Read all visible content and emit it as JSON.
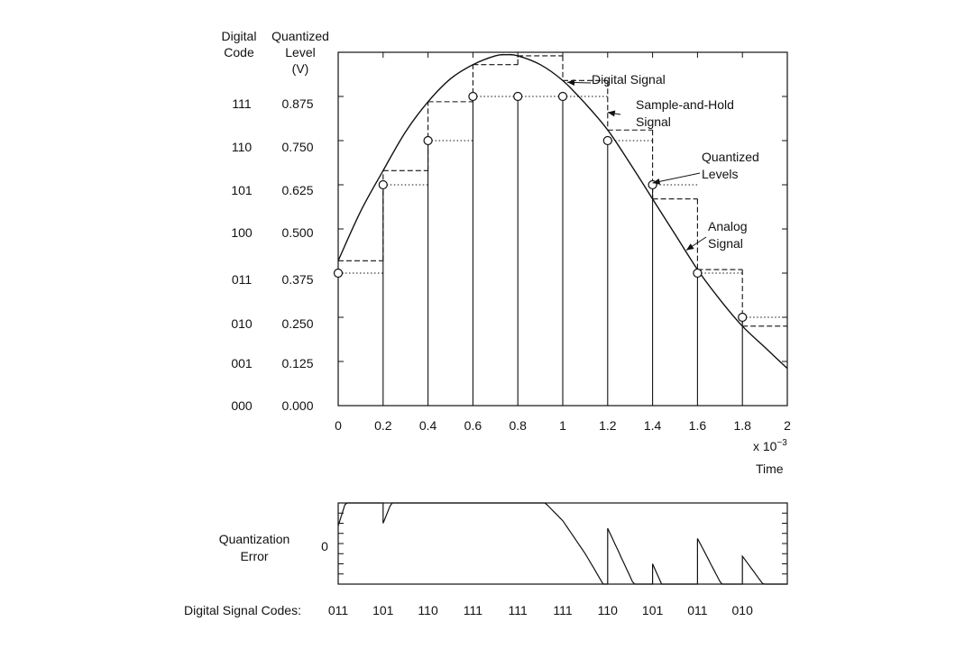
{
  "headers": {
    "code": [
      "Digital",
      "Code"
    ],
    "level": [
      "Quantized",
      "Level",
      "(V)"
    ]
  },
  "levels": [
    {
      "code": "111",
      "label": "0.875",
      "value": 0.875
    },
    {
      "code": "110",
      "label": "0.750",
      "value": 0.75
    },
    {
      "code": "101",
      "label": "0.625",
      "value": 0.625
    },
    {
      "code": "100",
      "label": "0.500",
      "value": 0.5
    },
    {
      "code": "011",
      "label": "0.375",
      "value": 0.375
    },
    {
      "code": "010",
      "label": "0.250",
      "value": 0.25
    },
    {
      "code": "001",
      "label": "0.125",
      "value": 0.125
    },
    {
      "code": "000",
      "label": "0.000",
      "value": 0.0
    }
  ],
  "chart_data": {
    "type": "line",
    "x_ticks": [
      "0",
      "0.2",
      "0.4",
      "0.6",
      "0.8",
      "1",
      "1.2",
      "1.4",
      "1.6",
      "1.8",
      "2"
    ],
    "x_tick_values": [
      0,
      0.2,
      0.4,
      0.6,
      0.8,
      1.0,
      1.2,
      1.4,
      1.6,
      1.8,
      2.0
    ],
    "xlim": [
      0,
      2
    ],
    "ylim": [
      0,
      1.0
    ],
    "x_multiplier": "x 10",
    "x_multiplier_exponent": "−3",
    "xlabel": "Time",
    "analog_signal": {
      "x": [
        0,
        0.1,
        0.2,
        0.3,
        0.4,
        0.5,
        0.6,
        0.7,
        0.75,
        0.8,
        0.9,
        1.0,
        1.1,
        1.2,
        1.3,
        1.4,
        1.5,
        1.6,
        1.7,
        1.8,
        1.9,
        2.0
      ],
      "y": [
        0.41,
        0.55,
        0.665,
        0.775,
        0.86,
        0.925,
        0.965,
        0.99,
        0.993,
        0.99,
        0.965,
        0.92,
        0.855,
        0.78,
        0.685,
        0.585,
        0.485,
        0.385,
        0.3,
        0.225,
        0.165,
        0.105
      ]
    },
    "samples": {
      "x": [
        0,
        0.2,
        0.4,
        0.6,
        0.8,
        1.0,
        1.2,
        1.4,
        1.6,
        1.8
      ],
      "sampled": [
        0.41,
        0.665,
        0.86,
        0.965,
        0.99,
        0.92,
        0.78,
        0.585,
        0.385,
        0.225
      ],
      "quantized": [
        0.375,
        0.625,
        0.75,
        0.875,
        0.875,
        0.875,
        0.75,
        0.625,
        0.375,
        0.25
      ]
    },
    "annotations": [
      {
        "lines": [
          "Digital Signal"
        ],
        "target_x": 1.02,
        "target_y": 0.915
      },
      {
        "lines": [
          "Sample-and-Hold",
          "Signal"
        ],
        "target_x": 1.2,
        "target_y": 0.83
      },
      {
        "lines": [
          "Quantized",
          "Levels"
        ],
        "target_x": 1.4,
        "target_y": 0.63
      },
      {
        "lines": [
          "Analog",
          "Signal"
        ],
        "target_x": 1.55,
        "target_y": 0.44
      }
    ],
    "error_panel": {
      "ylabel": [
        "Quantization",
        "Error"
      ],
      "zero_label": "0",
      "ylim": [
        -0.08,
        0.08
      ]
    },
    "digital_codes": {
      "label": "Digital Signal Codes:",
      "values": [
        "011",
        "101",
        "110",
        "111",
        "111",
        "111",
        "110",
        "101",
        "011",
        "010"
      ]
    }
  }
}
